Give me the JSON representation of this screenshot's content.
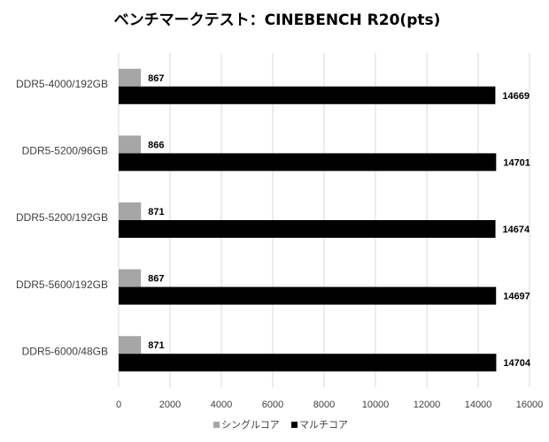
{
  "chart_data": {
    "type": "bar",
    "orientation": "horizontal",
    "title": "ベンチマークテスト：CINEBENCH R20(pts)",
    "categories": [
      "DDR5-4000/192GB",
      "DDR5-5200/96GB",
      "DDR5-5200/192GB",
      "DDR5-5600/192GB",
      "DDR5-6000/48GB"
    ],
    "series": [
      {
        "name": "シングルコア",
        "color": "#a6a6a6",
        "values": [
          867,
          866,
          871,
          867,
          871
        ]
      },
      {
        "name": "マルチコア",
        "color": "#000000",
        "values": [
          14669,
          14701,
          14674,
          14697,
          14704
        ]
      }
    ],
    "xlim": [
      0,
      16000
    ],
    "xticks": [
      0,
      2000,
      4000,
      6000,
      8000,
      10000,
      12000,
      14000,
      16000
    ],
    "grid": true,
    "legend": "bottom"
  }
}
